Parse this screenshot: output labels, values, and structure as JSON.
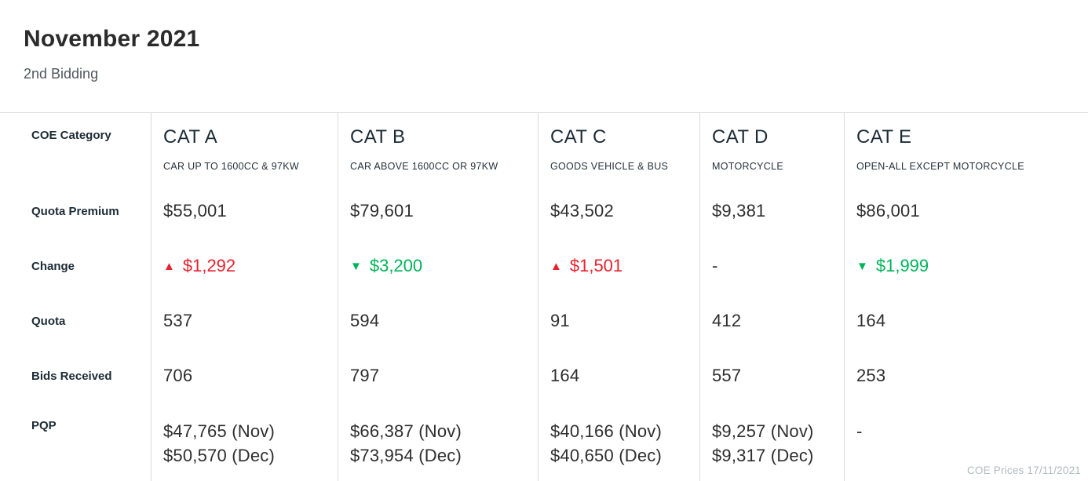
{
  "header": {
    "title": "November 2021",
    "subtitle": "2nd Bidding"
  },
  "table": {
    "row_labels": {
      "category": "COE Category",
      "quota_premium": "Quota Premium",
      "change": "Change",
      "quota": "Quota",
      "bids_received": "Bids Received",
      "pqp": "PQP"
    },
    "columns": [
      {
        "name": "CAT A",
        "description": "CAR UP TO 1600CC & 97KW",
        "quota_premium": "$55,001",
        "change": {
          "direction": "up",
          "icon": "▲",
          "amount": "$1,292"
        },
        "quota": "537",
        "bids_received": "706",
        "pqp_line1": "$47,765 (Nov)",
        "pqp_line2": "$50,570 (Dec)"
      },
      {
        "name": "CAT B",
        "description": "CAR ABOVE 1600CC OR 97KW",
        "quota_premium": "$79,601",
        "change": {
          "direction": "down",
          "icon": "▼",
          "amount": "$3,200"
        },
        "quota": "594",
        "bids_received": "797",
        "pqp_line1": "$66,387 (Nov)",
        "pqp_line2": "$73,954 (Dec)"
      },
      {
        "name": "CAT C",
        "description": "GOODS VEHICLE & BUS",
        "quota_premium": "$43,502",
        "change": {
          "direction": "up",
          "icon": "▲",
          "amount": "$1,501"
        },
        "quota": "91",
        "bids_received": "164",
        "pqp_line1": "$40,166 (Nov)",
        "pqp_line2": "$40,650 (Dec)"
      },
      {
        "name": "CAT D",
        "description": "MOTORCYCLE",
        "quota_premium": "$9,381",
        "change": {
          "direction": "none",
          "icon": "",
          "amount": "-"
        },
        "quota": "412",
        "bids_received": "557",
        "pqp_line1": "$9,257 (Nov)",
        "pqp_line2": "$9,317 (Dec)"
      },
      {
        "name": "CAT E",
        "description": "OPEN-ALL EXCEPT MOTORCYCLE",
        "quota_premium": "$86,001",
        "change": {
          "direction": "down",
          "icon": "▼",
          "amount": "$1,999"
        },
        "quota": "164",
        "bids_received": "253",
        "pqp_line1": "-",
        "pqp_line2": ""
      }
    ]
  },
  "footer": {
    "watermark": "COE Prices 17/11/2021"
  },
  "colors": {
    "change_up": "#e8212e",
    "change_down": "#00b45a"
  }
}
